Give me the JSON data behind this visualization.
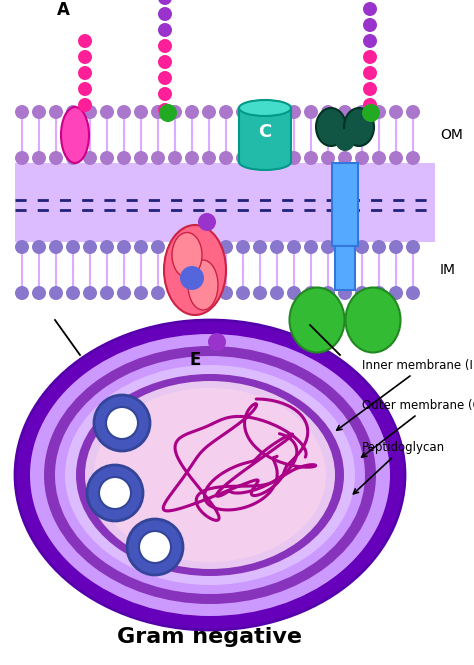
{
  "title": "Gram negative",
  "bg_color": "#ffffff",
  "purple_bead": "#9933cc",
  "pink_bead": "#ff1f99",
  "om_head_color": "#aa77cc",
  "im_head_color": "#8877cc",
  "tail_color": "#ddaaff",
  "periplasm_color": "#ddbbff",
  "peptidoglycan_line_color": "#22227a",
  "dark_navy": "#22227a",
  "label_OM": "OM",
  "label_IM": "IM",
  "cell_outer_color": "#6600bb",
  "cell_mid1_color": "#cc99ff",
  "cell_mid2_color": "#9944cc",
  "cell_mid3_color": "#ddbbff",
  "cell_inner_mem_color": "#9944cc",
  "cell_cytoplasm_color": "#f5d0ee",
  "peptidoglycan_color": "#aa0088",
  "ribosome_outer_color": "#4455bb",
  "ribosome_inner_color": "#ffffff",
  "annotation_color": "#000000",
  "green_bead": "#22aa22",
  "teal_color": "#22bbaa",
  "teal_dark": "#009988",
  "dark_teal": "#115544",
  "darker_teal": "#003322",
  "blue_channel": "#55aaff",
  "green_motor": "#33bb33",
  "pink_protein": "#ff6688",
  "pink_protein_edge": "#cc2244",
  "magenta_protein": "#ff44bb",
  "magenta_protein_edge": "#cc0088"
}
